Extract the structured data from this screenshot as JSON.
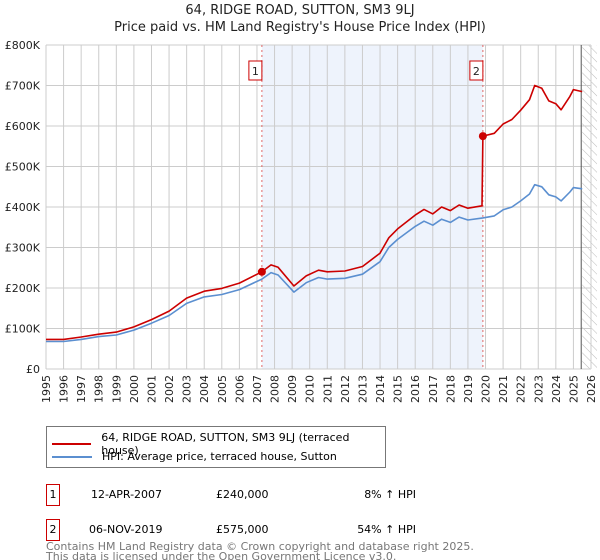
{
  "title": "64, RIDGE ROAD, SUTTON, SM3 9LJ",
  "subtitle": "Price paid vs. HM Land Registry's House Price Index (HPI)",
  "colors": {
    "property": "#cc0000",
    "hpi": "#5b8fd0",
    "shade": "#eef3fc",
    "grid": "#cccccc"
  },
  "chart_data": {
    "type": "line",
    "title": "64, RIDGE ROAD, SUTTON, SM3 9LJ",
    "subtitle": "Price paid vs. HM Land Registry's House Price Index (HPI)",
    "xlim": [
      1995,
      2026
    ],
    "ylim": [
      0,
      800000
    ],
    "y_ticks": [
      {
        "v": 0,
        "label": "£0"
      },
      {
        "v": 100000,
        "label": "£100K"
      },
      {
        "v": 200000,
        "label": "£200K"
      },
      {
        "v": 300000,
        "label": "£300K"
      },
      {
        "v": 400000,
        "label": "£400K"
      },
      {
        "v": 500000,
        "label": "£500K"
      },
      {
        "v": 600000,
        "label": "£600K"
      },
      {
        "v": 700000,
        "label": "£700K"
      },
      {
        "v": 800000,
        "label": "£800K"
      }
    ],
    "x_ticks": [
      "1995",
      "1996",
      "1997",
      "1998",
      "1999",
      "2000",
      "2001",
      "2002",
      "2003",
      "2004",
      "2005",
      "2006",
      "2007",
      "2008",
      "2009",
      "2010",
      "2011",
      "2012",
      "2013",
      "2014",
      "2015",
      "2016",
      "2017",
      "2018",
      "2019",
      "2020",
      "2021",
      "2022",
      "2023",
      "2024",
      "2025",
      "2026"
    ],
    "grid": true,
    "shaded_range": [
      2007.28,
      2019.85
    ],
    "hatched_from": 2025.5,
    "series": [
      {
        "name": "HPI: Average price, terraced house, Sutton",
        "points": [
          [
            1995,
            68000
          ],
          [
            1996,
            68000
          ],
          [
            1997,
            73000
          ],
          [
            1998,
            80000
          ],
          [
            1999,
            84000
          ],
          [
            2000,
            96000
          ],
          [
            2001,
            113000
          ],
          [
            2002,
            132000
          ],
          [
            2003,
            162000
          ],
          [
            2004,
            178000
          ],
          [
            2005,
            184000
          ],
          [
            2006,
            196000
          ],
          [
            2007.28,
            222000
          ],
          [
            2007.8,
            238000
          ],
          [
            2008.2,
            232000
          ],
          [
            2009.1,
            190000
          ],
          [
            2009.8,
            213000
          ],
          [
            2010.5,
            226000
          ],
          [
            2011,
            222000
          ],
          [
            2012,
            224000
          ],
          [
            2013,
            234000
          ],
          [
            2014,
            265000
          ],
          [
            2014.5,
            300000
          ],
          [
            2015,
            320000
          ],
          [
            2016,
            352000
          ],
          [
            2016.5,
            365000
          ],
          [
            2017,
            355000
          ],
          [
            2017.5,
            370000
          ],
          [
            2018,
            362000
          ],
          [
            2018.5,
            375000
          ],
          [
            2019,
            368000
          ],
          [
            2019.85,
            373000
          ],
          [
            2020.5,
            378000
          ],
          [
            2021,
            393000
          ],
          [
            2021.5,
            400000
          ],
          [
            2022,
            415000
          ],
          [
            2022.5,
            432000
          ],
          [
            2022.8,
            455000
          ],
          [
            2023.2,
            450000
          ],
          [
            2023.6,
            430000
          ],
          [
            2024,
            425000
          ],
          [
            2024.3,
            415000
          ],
          [
            2024.8,
            437000
          ],
          [
            2025,
            448000
          ],
          [
            2025.5,
            445000
          ]
        ]
      },
      {
        "name": "64, RIDGE ROAD, SUTTON, SM3 9LJ (terraced house)",
        "points": [
          [
            1995,
            73000
          ],
          [
            1996,
            73000
          ],
          [
            1997,
            79000
          ],
          [
            1998,
            86000
          ],
          [
            1999,
            91000
          ],
          [
            2000,
            104000
          ],
          [
            2001,
            122000
          ],
          [
            2002,
            143000
          ],
          [
            2003,
            175000
          ],
          [
            2004,
            192000
          ],
          [
            2005,
            199000
          ],
          [
            2006,
            212000
          ],
          [
            2007.28,
            240000
          ],
          [
            2007.8,
            257000
          ],
          [
            2008.2,
            251000
          ],
          [
            2009.1,
            205000
          ],
          [
            2009.8,
            230000
          ],
          [
            2010.5,
            244000
          ],
          [
            2011,
            240000
          ],
          [
            2012,
            242000
          ],
          [
            2013,
            253000
          ],
          [
            2014,
            286000
          ],
          [
            2014.5,
            324000
          ],
          [
            2015,
            346000
          ],
          [
            2016,
            380000
          ],
          [
            2016.5,
            394000
          ],
          [
            2017,
            383000
          ],
          [
            2017.5,
            400000
          ],
          [
            2018,
            391000
          ],
          [
            2018.5,
            405000
          ],
          [
            2019,
            397000
          ],
          [
            2019.8,
            403000
          ],
          [
            2019.85,
            575000
          ],
          [
            2020.5,
            582000
          ],
          [
            2021,
            605000
          ],
          [
            2021.5,
            616000
          ],
          [
            2022,
            639000
          ],
          [
            2022.5,
            665000
          ],
          [
            2022.8,
            700000
          ],
          [
            2023.2,
            693000
          ],
          [
            2023.6,
            662000
          ],
          [
            2024,
            655000
          ],
          [
            2024.3,
            640000
          ],
          [
            2024.8,
            673000
          ],
          [
            2025,
            690000
          ],
          [
            2025.5,
            685000
          ]
        ]
      }
    ],
    "sales": [
      {
        "id": "1",
        "x": 2007.28,
        "y": 240000
      },
      {
        "id": "2",
        "x": 2019.85,
        "y": 575000
      }
    ]
  },
  "legend": {
    "property": "64, RIDGE ROAD, SUTTON, SM3 9LJ (terraced house)",
    "hpi": "HPI: Average price, terraced house, Sutton"
  },
  "transactions": [
    {
      "id": "1",
      "date": "12-APR-2007",
      "price": "£240,000",
      "hpi": "8% ↑ HPI"
    },
    {
      "id": "2",
      "date": "06-NOV-2019",
      "price": "£575,000",
      "hpi": "54% ↑ HPI"
    }
  ],
  "footer": {
    "line1": "Contains HM Land Registry data © Crown copyright and database right 2025.",
    "line2": "This data is licensed under the Open Government Licence v3.0."
  }
}
